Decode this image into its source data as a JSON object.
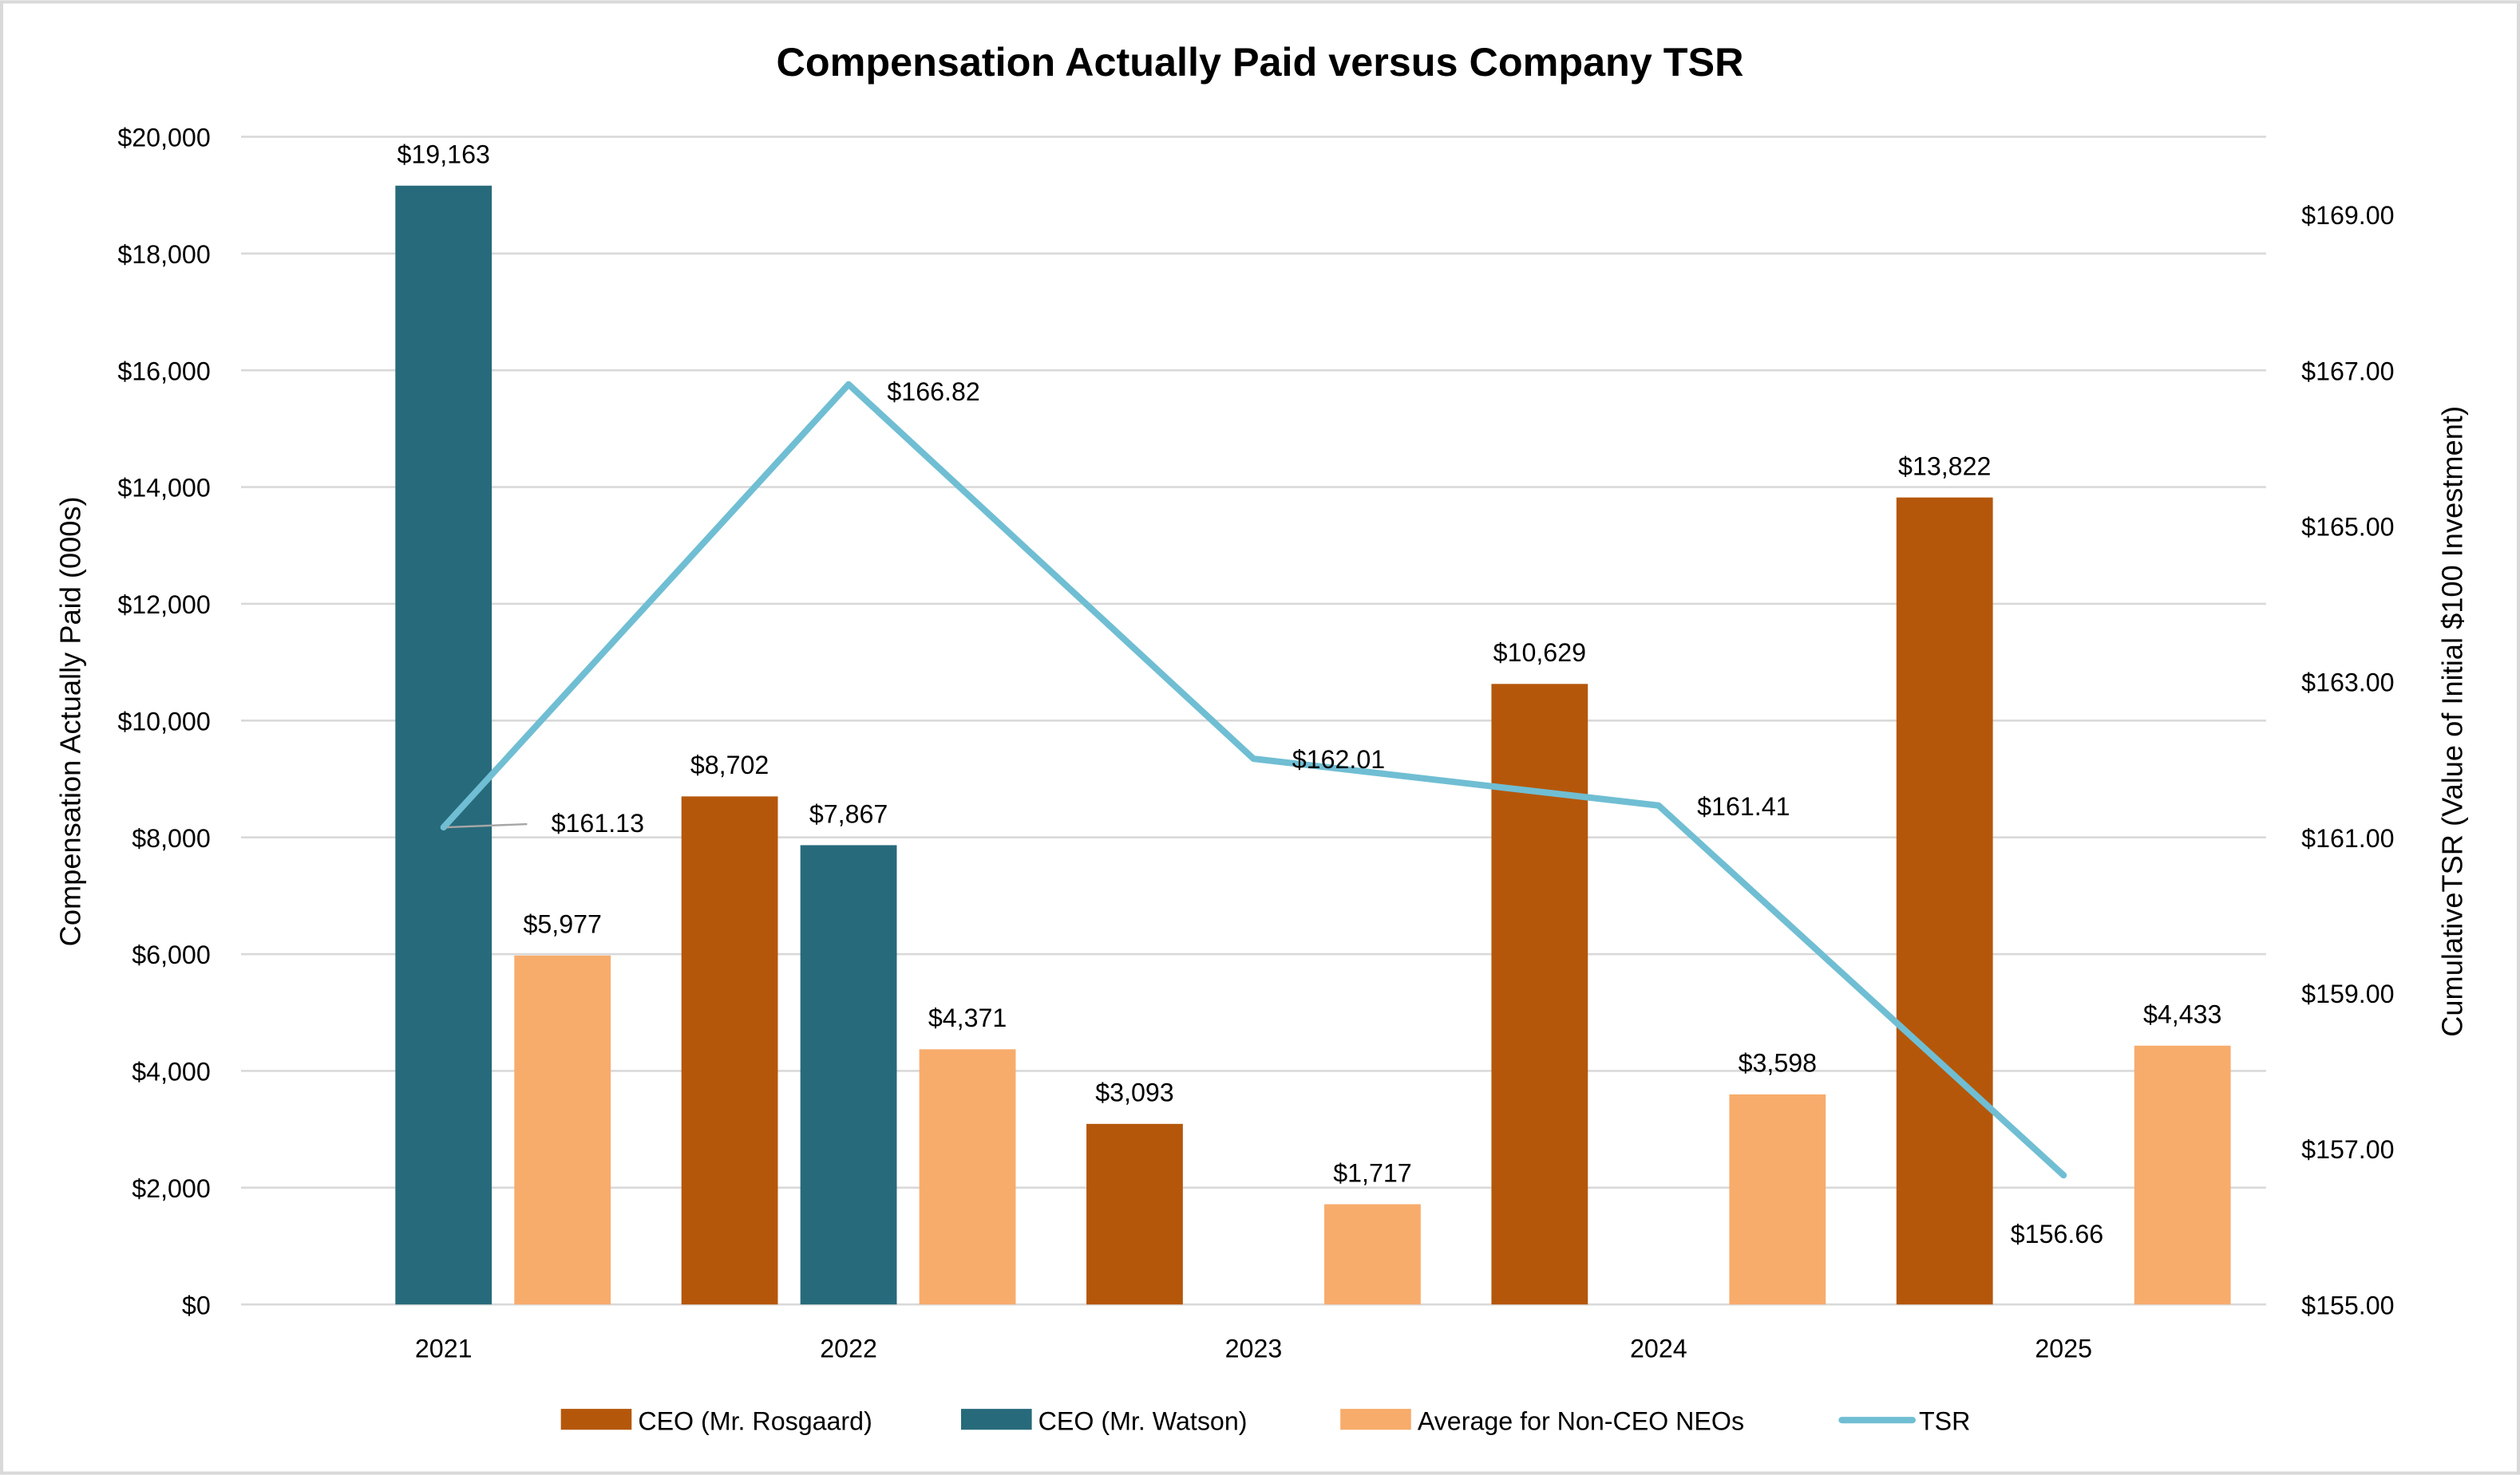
{
  "chart_data": {
    "type": "bar+line",
    "title": "Compensation Actually Paid versus Company TSR",
    "ylabel": "Compensation Actually Paid (000s)",
    "y2label": "CumulativeTSR (Value of Initial $100 Investment)",
    "categories": [
      "2021",
      "2022",
      "2023",
      "2024",
      "2025"
    ],
    "ylim": [
      0,
      20000
    ],
    "yticks": [
      "$0",
      "$2,000",
      "$4,000",
      "$6,000",
      "$8,000",
      "$10,000",
      "$12,000",
      "$14,000",
      "$16,000",
      "$18,000",
      "$20,000"
    ],
    "y2lim": [
      155,
      170
    ],
    "y2ticks": [
      "$155.00",
      "$157.00",
      "$159.00",
      "$161.00",
      "$163.00",
      "$165.00",
      "$167.00",
      "$169.00"
    ],
    "grid": true,
    "legend_position": "bottom",
    "series": [
      {
        "name": "CEO (Mr. Rosgaard)",
        "type": "bar",
        "color": "#B5570A",
        "values": [
          null,
          8702,
          3093,
          10629,
          13822
        ],
        "labels": [
          "",
          "$8,702",
          "$3,093",
          "$10,629",
          "$13,822"
        ]
      },
      {
        "name": "CEO (Mr. Watson)",
        "type": "bar",
        "color": "#276A7B",
        "values": [
          19163,
          7867,
          null,
          null,
          null
        ],
        "labels": [
          "$19,163",
          "$7,867",
          "",
          "",
          ""
        ]
      },
      {
        "name": "Average for Non-CEO NEOs",
        "type": "bar",
        "color": "#F7AC6C",
        "values": [
          5977,
          4371,
          1717,
          3598,
          4433
        ],
        "labels": [
          "$5,977",
          "$4,371",
          "$1,717",
          "$3,598",
          "$4,433"
        ]
      },
      {
        "name": "TSR",
        "type": "line",
        "axis": "right",
        "color": "#70BED3",
        "values": [
          161.13,
          166.82,
          162.01,
          161.41,
          156.66
        ],
        "labels": [
          "$161.13",
          "$166.82",
          "$162.01",
          "$161.41",
          "$156.66"
        ]
      }
    ]
  }
}
